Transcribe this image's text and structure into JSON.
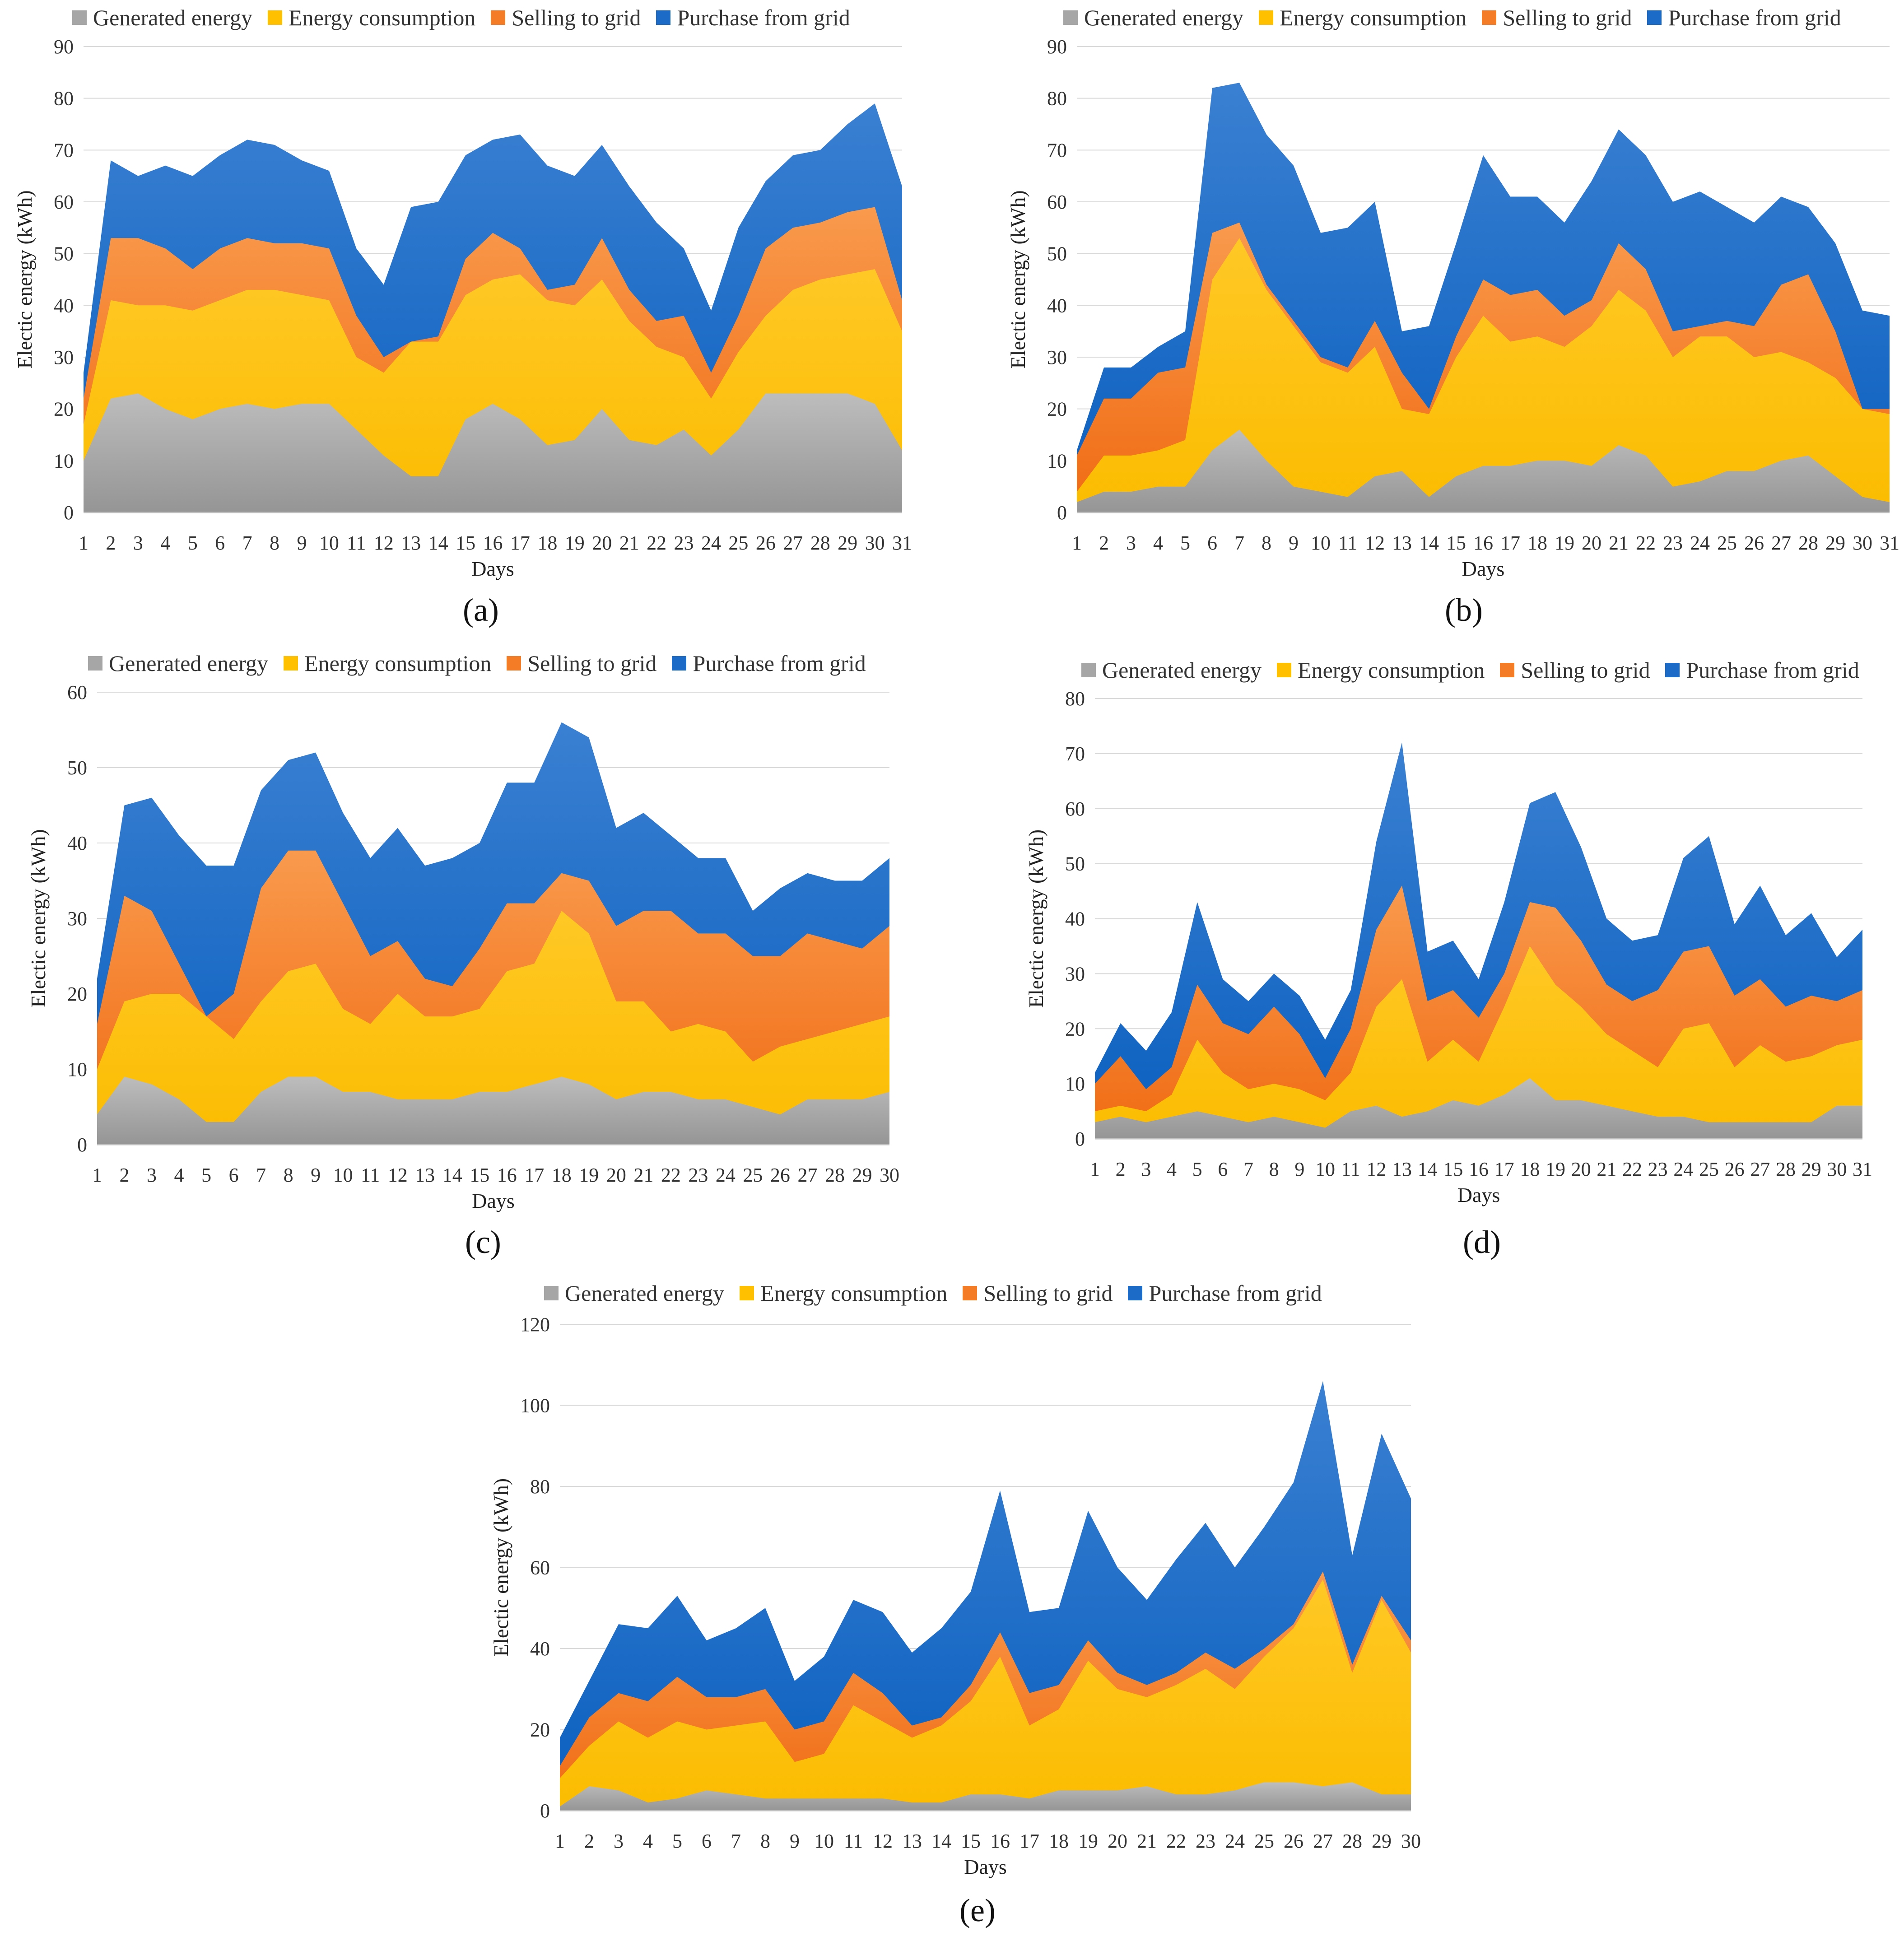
{
  "colors": {
    "generated": "#a6a6a6",
    "consumption": "#ffc000",
    "selling": "#f57c26",
    "purchase": "#1c6cc7",
    "grid": "#d9d9d9"
  },
  "legend_labels": [
    "Generated energy",
    "Energy consumption",
    "Selling to grid",
    "Purchase from grid"
  ],
  "chart_data": [
    {
      "id": "a",
      "type": "area",
      "caption": "(a)",
      "xlabel": "Days",
      "ylabel": "Electic energy (kWh)",
      "ylim": [
        0,
        90
      ],
      "yticks": [
        0,
        10,
        20,
        30,
        40,
        50,
        60,
        70,
        80,
        90
      ],
      "categories": [
        "1",
        "2",
        "3",
        "4",
        "5",
        "6",
        "7",
        "8",
        "9",
        "10",
        "11",
        "12",
        "13",
        "14",
        "15",
        "16",
        "17",
        "18",
        "19",
        "20",
        "21",
        "22",
        "23",
        "24",
        "25",
        "26",
        "27",
        "28",
        "29",
        "30",
        "31"
      ],
      "series": [
        {
          "name": "Purchase from grid",
          "key": "purchase",
          "values": [
            27,
            68,
            65,
            67,
            65,
            69,
            72,
            71,
            68,
            66,
            51,
            44,
            59,
            60,
            69,
            72,
            73,
            67,
            65,
            71,
            63,
            56,
            51,
            39,
            55,
            64,
            69,
            70,
            75,
            79,
            63
          ]
        },
        {
          "name": "Selling to grid",
          "key": "selling",
          "values": [
            22,
            53,
            53,
            51,
            47,
            51,
            53,
            52,
            52,
            51,
            38,
            30,
            33,
            34,
            49,
            54,
            51,
            43,
            44,
            53,
            43,
            37,
            38,
            27,
            38,
            51,
            55,
            56,
            58,
            59,
            41
          ]
        },
        {
          "name": "Energy consumption",
          "key": "consumption",
          "values": [
            17,
            41,
            40,
            40,
            39,
            41,
            43,
            43,
            42,
            41,
            30,
            27,
            33,
            33,
            42,
            45,
            46,
            41,
            40,
            45,
            37,
            32,
            30,
            22,
            31,
            38,
            43,
            45,
            46,
            47,
            35
          ]
        },
        {
          "name": "Generated energy",
          "key": "generated",
          "values": [
            10,
            22,
            23,
            20,
            18,
            20,
            21,
            20,
            21,
            21,
            16,
            11,
            7,
            7,
            18,
            21,
            18,
            13,
            14,
            20,
            14,
            13,
            16,
            11,
            16,
            23,
            23,
            23,
            23,
            21,
            12
          ]
        }
      ]
    },
    {
      "id": "b",
      "type": "area",
      "caption": "(b)",
      "xlabel": "Days",
      "ylabel": "Electic energy (kWh)",
      "ylim": [
        0,
        90
      ],
      "yticks": [
        0,
        10,
        20,
        30,
        40,
        50,
        60,
        70,
        80,
        90
      ],
      "categories": [
        "1",
        "2",
        "3",
        "4",
        "5",
        "6",
        "7",
        "8",
        "9",
        "10",
        "11",
        "12",
        "13",
        "14",
        "15",
        "16",
        "17",
        "18",
        "19",
        "20",
        "21",
        "22",
        "23",
        "24",
        "25",
        "26",
        "27",
        "28",
        "29",
        "30",
        "31"
      ],
      "series": [
        {
          "name": "Purchase from grid",
          "key": "purchase",
          "values": [
            12,
            28,
            28,
            32,
            35,
            82,
            83,
            73,
            67,
            54,
            55,
            60,
            35,
            36,
            52,
            69,
            61,
            61,
            56,
            64,
            74,
            69,
            60,
            62,
            59,
            56,
            61,
            59,
            52,
            39,
            38
          ]
        },
        {
          "name": "Selling to grid",
          "key": "selling",
          "values": [
            11,
            22,
            22,
            27,
            28,
            54,
            56,
            44,
            37,
            30,
            28,
            37,
            27,
            20,
            34,
            45,
            42,
            43,
            38,
            41,
            52,
            47,
            35,
            36,
            37,
            36,
            44,
            46,
            35,
            20,
            20
          ]
        },
        {
          "name": "Energy consumption",
          "key": "consumption",
          "values": [
            4,
            11,
            11,
            12,
            14,
            45,
            53,
            43,
            36,
            29,
            27,
            32,
            20,
            19,
            30,
            38,
            33,
            34,
            32,
            36,
            43,
            39,
            30,
            34,
            34,
            30,
            31,
            29,
            26,
            20,
            19
          ]
        },
        {
          "name": "Generated energy",
          "key": "generated",
          "values": [
            2,
            4,
            4,
            5,
            5,
            12,
            16,
            10,
            5,
            4,
            3,
            7,
            8,
            3,
            7,
            9,
            9,
            10,
            10,
            9,
            13,
            11,
            5,
            6,
            8,
            8,
            10,
            11,
            7,
            3,
            2
          ]
        }
      ]
    },
    {
      "id": "c",
      "type": "area",
      "caption": "(c)",
      "xlabel": "Days",
      "ylabel": "Electic energy (kWh)",
      "ylim": [
        0,
        60
      ],
      "yticks": [
        0,
        10,
        20,
        30,
        40,
        50,
        60
      ],
      "categories": [
        "1",
        "2",
        "3",
        "4",
        "5",
        "6",
        "7",
        "8",
        "9",
        "10",
        "11",
        "12",
        "13",
        "14",
        "15",
        "16",
        "17",
        "18",
        "19",
        "20",
        "21",
        "22",
        "23",
        "24",
        "25",
        "26",
        "27",
        "28",
        "29",
        "30"
      ],
      "series": [
        {
          "name": "Purchase from grid",
          "key": "purchase",
          "values": [
            22,
            45,
            46,
            41,
            37,
            37,
            47,
            51,
            52,
            44,
            38,
            42,
            37,
            38,
            40,
            48,
            48,
            56,
            54,
            42,
            44,
            41,
            38,
            38,
            31,
            34,
            36,
            35,
            35,
            38
          ]
        },
        {
          "name": "Selling to grid",
          "key": "selling",
          "values": [
            16,
            33,
            31,
            24,
            17,
            20,
            34,
            39,
            39,
            32,
            25,
            27,
            22,
            21,
            26,
            32,
            32,
            36,
            35,
            29,
            31,
            31,
            28,
            28,
            25,
            25,
            28,
            27,
            26,
            29
          ]
        },
        {
          "name": "Energy consumption",
          "key": "consumption",
          "values": [
            10,
            19,
            20,
            20,
            17,
            14,
            19,
            23,
            24,
            18,
            16,
            20,
            17,
            17,
            18,
            23,
            24,
            31,
            28,
            19,
            19,
            15,
            16,
            15,
            11,
            13,
            14,
            15,
            16,
            17
          ]
        },
        {
          "name": "Generated energy",
          "key": "generated",
          "values": [
            4,
            9,
            8,
            6,
            3,
            3,
            7,
            9,
            9,
            7,
            7,
            6,
            6,
            6,
            7,
            7,
            8,
            9,
            8,
            6,
            7,
            7,
            6,
            6,
            5,
            4,
            6,
            6,
            6,
            7
          ]
        }
      ]
    },
    {
      "id": "d",
      "type": "area",
      "caption": "(d)",
      "xlabel": "Days",
      "ylabel": "Electic energy (kWh)",
      "ylim": [
        0,
        80
      ],
      "yticks": [
        0,
        10,
        20,
        30,
        40,
        50,
        60,
        70,
        80
      ],
      "categories": [
        "1",
        "2",
        "3",
        "4",
        "5",
        "6",
        "7",
        "8",
        "9",
        "10",
        "11",
        "12",
        "13",
        "14",
        "15",
        "16",
        "17",
        "18",
        "19",
        "20",
        "21",
        "22",
        "23",
        "24",
        "25",
        "26",
        "27",
        "28",
        "29",
        "30",
        "31"
      ],
      "series": [
        {
          "name": "Purchase from grid",
          "key": "purchase",
          "values": [
            12,
            21,
            16,
            23,
            43,
            29,
            25,
            30,
            26,
            18,
            27,
            54,
            72,
            34,
            36,
            29,
            43,
            61,
            63,
            53,
            40,
            36,
            37,
            51,
            55,
            39,
            46,
            37,
            41,
            33,
            38
          ]
        },
        {
          "name": "Selling to grid",
          "key": "selling",
          "values": [
            10,
            15,
            9,
            13,
            28,
            21,
            19,
            24,
            19,
            11,
            20,
            38,
            46,
            25,
            27,
            22,
            30,
            43,
            42,
            36,
            28,
            25,
            27,
            34,
            35,
            26,
            29,
            24,
            26,
            25,
            27
          ]
        },
        {
          "name": "Energy consumption",
          "key": "consumption",
          "values": [
            5,
            6,
            5,
            8,
            18,
            12,
            9,
            10,
            9,
            7,
            12,
            24,
            29,
            14,
            18,
            14,
            24,
            35,
            28,
            24,
            19,
            16,
            13,
            20,
            21,
            13,
            17,
            14,
            15,
            17,
            18
          ]
        },
        {
          "name": "Generated energy",
          "key": "generated",
          "values": [
            3,
            4,
            3,
            4,
            5,
            4,
            3,
            4,
            3,
            2,
            5,
            6,
            4,
            5,
            7,
            6,
            8,
            11,
            7,
            7,
            6,
            5,
            4,
            4,
            3,
            3,
            3,
            3,
            3,
            6,
            6
          ]
        }
      ]
    },
    {
      "id": "e",
      "type": "area",
      "caption": "(e)",
      "xlabel": "Days",
      "ylabel": "Electic energy (kWh)",
      "ylim": [
        0,
        120
      ],
      "yticks": [
        0,
        20,
        40,
        60,
        80,
        100,
        120
      ],
      "categories": [
        "1",
        "2",
        "3",
        "4",
        "5",
        "6",
        "7",
        "8",
        "9",
        "10",
        "11",
        "12",
        "13",
        "14",
        "15",
        "16",
        "17",
        "18",
        "19",
        "20",
        "21",
        "22",
        "23",
        "24",
        "25",
        "26",
        "27",
        "28",
        "29",
        "30"
      ],
      "series": [
        {
          "name": "Purchase from grid",
          "key": "purchase",
          "values": [
            18,
            32,
            46,
            45,
            53,
            42,
            45,
            50,
            32,
            38,
            52,
            49,
            39,
            45,
            54,
            79,
            49,
            50,
            74,
            60,
            52,
            62,
            71,
            60,
            70,
            81,
            106,
            63,
            93,
            77
          ]
        },
        {
          "name": "Selling to grid",
          "key": "selling",
          "values": [
            11,
            23,
            29,
            27,
            33,
            28,
            28,
            30,
            20,
            22,
            34,
            29,
            21,
            23,
            31,
            44,
            29,
            31,
            42,
            34,
            31,
            34,
            39,
            35,
            40,
            46,
            59,
            36,
            53,
            42
          ]
        },
        {
          "name": "Energy consumption",
          "key": "consumption",
          "values": [
            8,
            16,
            22,
            18,
            22,
            20,
            21,
            22,
            12,
            14,
            26,
            22,
            18,
            21,
            27,
            38,
            21,
            25,
            37,
            30,
            28,
            31,
            35,
            30,
            38,
            45,
            57,
            34,
            52,
            39
          ]
        },
        {
          "name": "Generated energy",
          "key": "generated",
          "values": [
            1,
            6,
            5,
            2,
            3,
            5,
            4,
            3,
            3,
            3,
            3,
            3,
            2,
            2,
            4,
            4,
            3,
            5,
            5,
            5,
            6,
            4,
            4,
            5,
            7,
            7,
            6,
            7,
            4,
            4
          ]
        }
      ]
    }
  ]
}
